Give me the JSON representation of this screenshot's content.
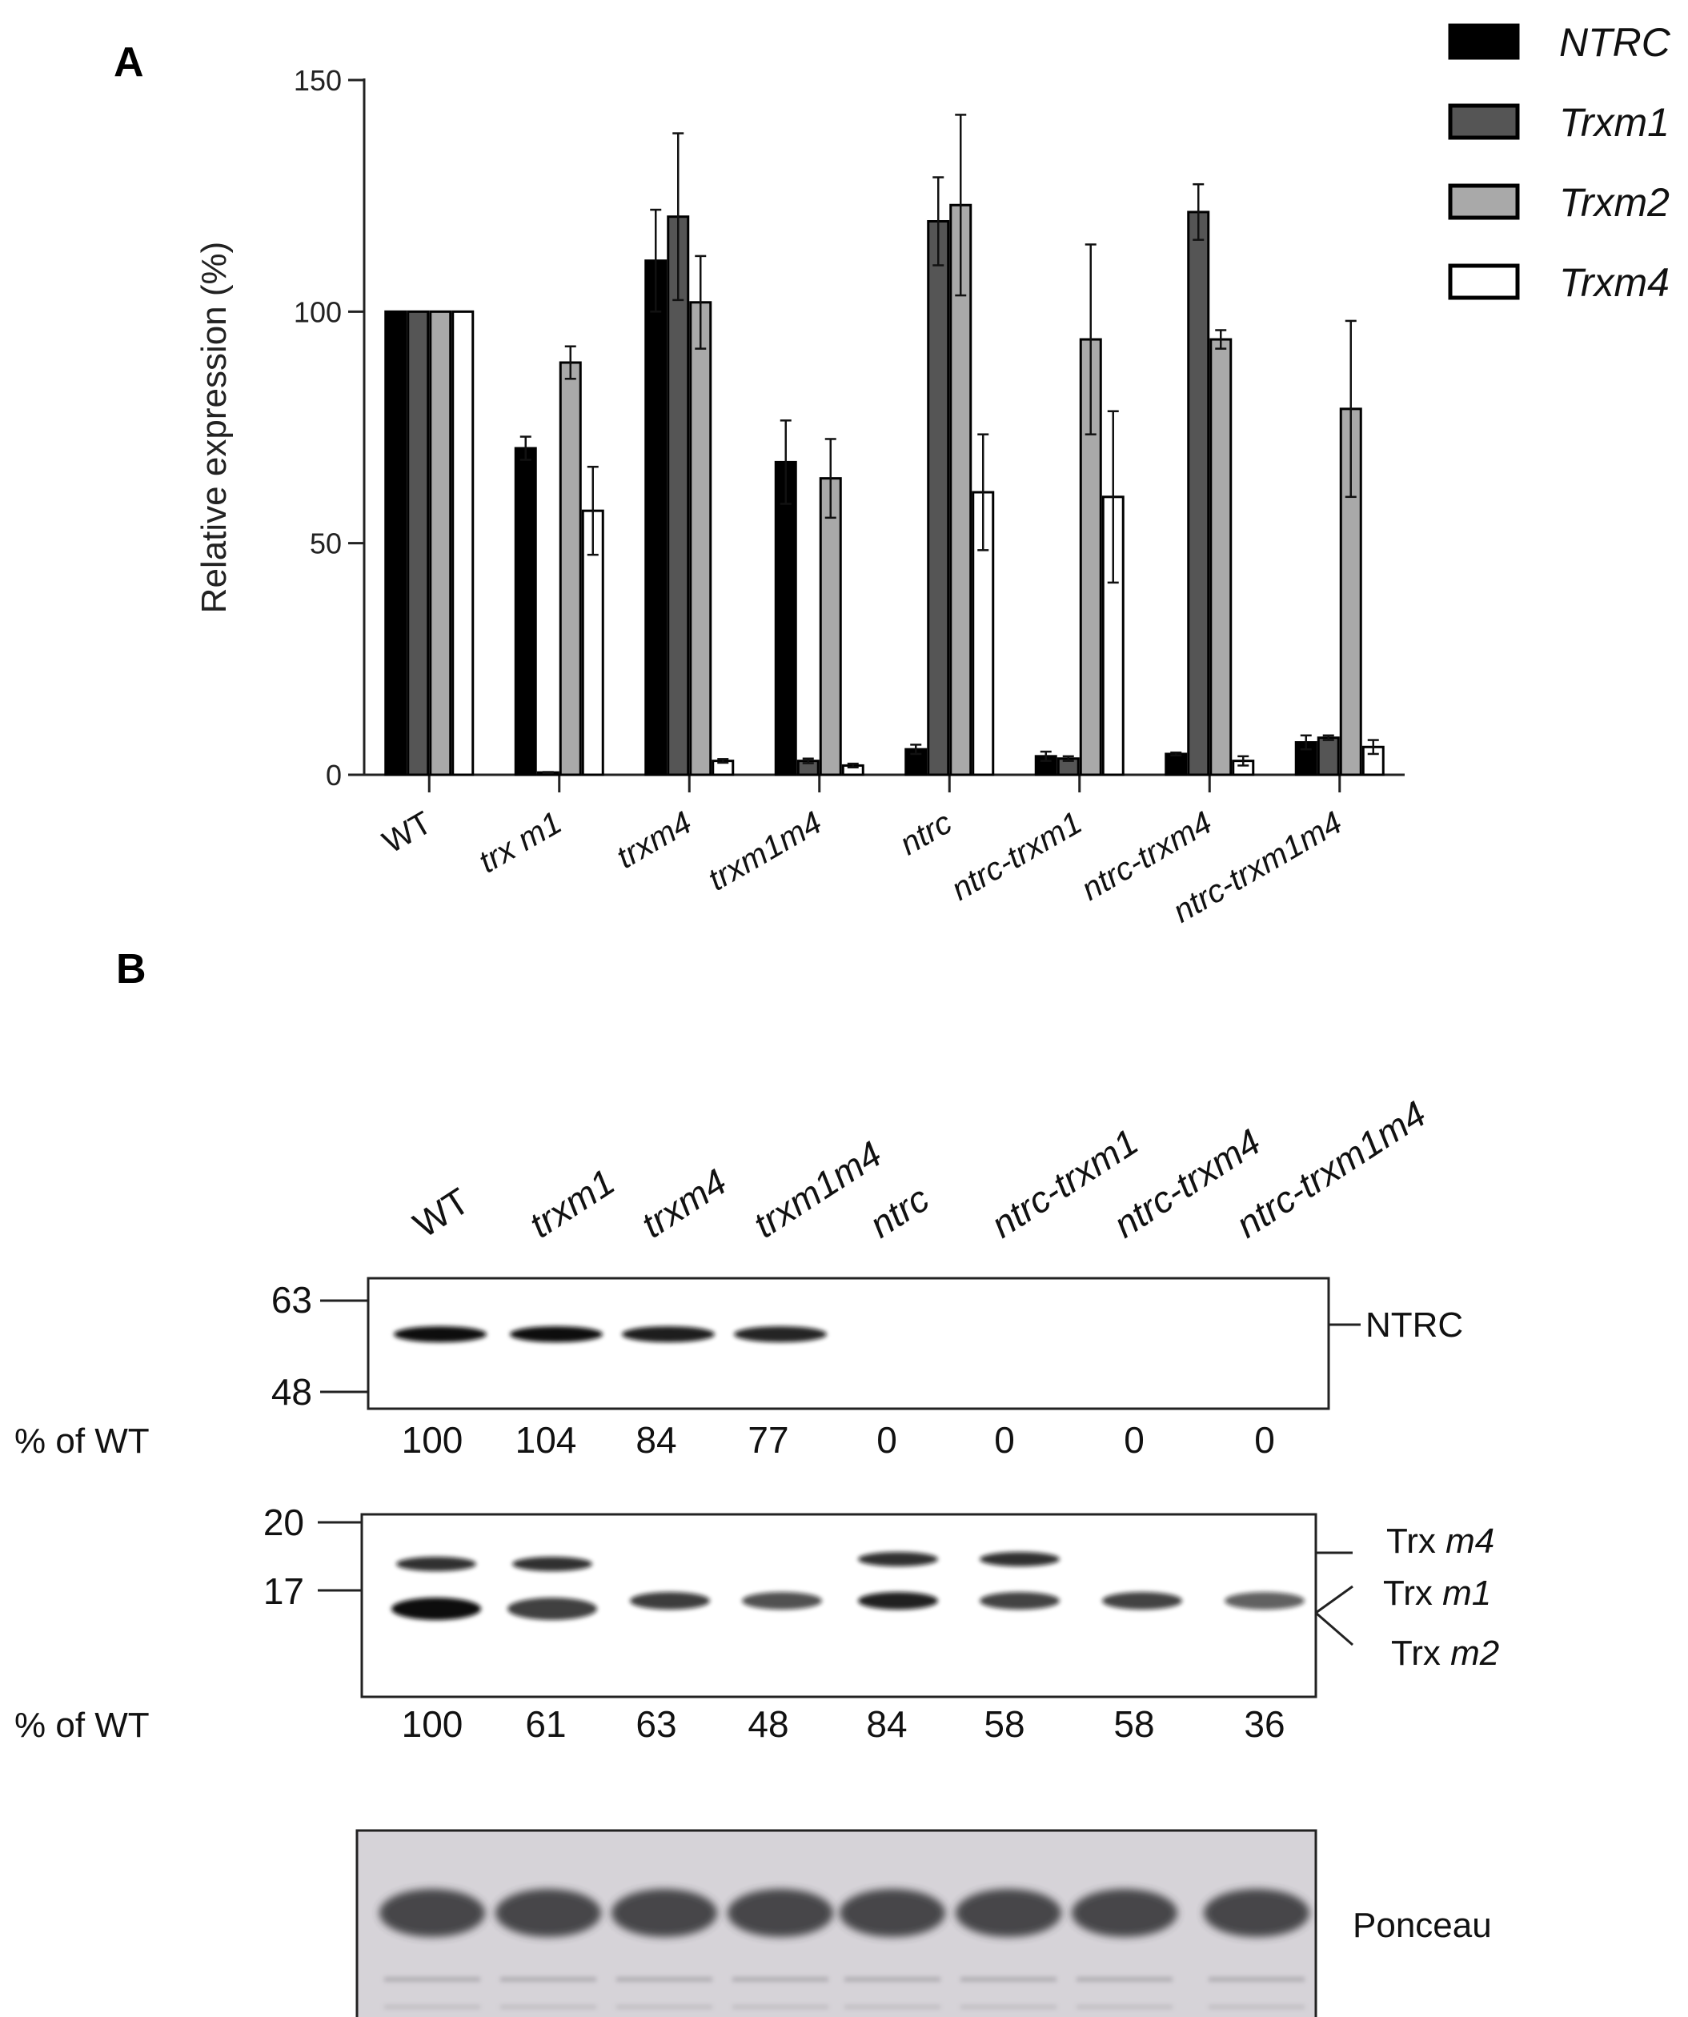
{
  "panel_a": {
    "letter": "A"
  },
  "panel_b": {
    "letter": "B",
    "lanes": [
      "WT",
      "trxm1",
      "trxm4",
      "trxm1m4",
      "ntrc",
      "ntrc-trxm1",
      "ntrc-trxm4",
      "ntrc-trxm1m4"
    ],
    "ntrc_blot": {
      "markers": [
        "63",
        "48"
      ],
      "band_label": "NTRC",
      "row_label": "% of WT",
      "percent_of_wt": [
        "100",
        "104",
        "84",
        "77",
        "0",
        "0",
        "0",
        "0"
      ],
      "relative_band_intensity": [
        100,
        104,
        84,
        77,
        0,
        0,
        0,
        0
      ]
    },
    "trx_blot": {
      "markers": [
        "20",
        "17"
      ],
      "band_labels": [
        {
          "prefix": "Trx ",
          "italic": "m4"
        },
        {
          "prefix": "Trx ",
          "italic": "m1"
        },
        {
          "prefix": "Trx ",
          "italic": "m2"
        }
      ],
      "row_label": "% of WT",
      "percent_of_wt": [
        "100",
        "61",
        "63",
        "48",
        "84",
        "58",
        "58",
        "36"
      ],
      "upper_band_present": [
        true,
        true,
        false,
        false,
        true,
        true,
        false,
        false
      ]
    },
    "ponceau": {
      "label": "Ponceau"
    }
  },
  "chart_data": {
    "type": "bar",
    "title": "",
    "xlabel": "",
    "ylabel": "Relative expression (%)",
    "ylim": [
      0,
      150
    ],
    "yticks": [
      0,
      50,
      100,
      150
    ],
    "categories": [
      "WT",
      "trx m1",
      "trxm4",
      "trxm1m4",
      "ntrc",
      "ntrc-trxm1",
      "ntrc-trxm4",
      "ntrc-trxm1m4"
    ],
    "legend_position": "top-right",
    "series": [
      {
        "name": "NTRC",
        "color": "#000000",
        "values": [
          100,
          70.5,
          111,
          67.5,
          5.5,
          4,
          4.5,
          7
        ],
        "errors": [
          0,
          2.5,
          11,
          9,
          1,
          1,
          0.3,
          1.5
        ]
      },
      {
        "name": "Trxm1",
        "color": "#555555",
        "values": [
          100,
          0.5,
          120.5,
          3,
          119.5,
          3.5,
          121.5,
          8
        ],
        "errors": [
          0,
          0.1,
          18,
          0.5,
          9.5,
          0.5,
          6,
          0.5
        ]
      },
      {
        "name": "Trxm2",
        "color": "#a9a9a9",
        "values": [
          100,
          89,
          102,
          64,
          123,
          94,
          94,
          79
        ],
        "errors": [
          0,
          3.5,
          10,
          8.5,
          19.5,
          20.5,
          2,
          19
        ]
      },
      {
        "name": "Trxm4",
        "color": "#ffffff",
        "values": [
          100,
          57,
          3,
          2,
          61,
          60,
          3,
          6
        ],
        "errors": [
          0,
          9.5,
          0.4,
          0.4,
          12.5,
          18.5,
          1,
          1.5
        ]
      }
    ]
  }
}
